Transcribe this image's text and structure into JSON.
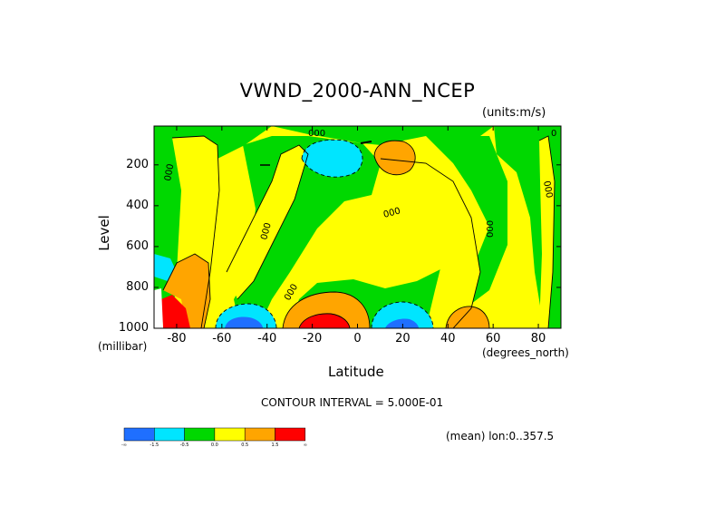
{
  "chart_data": {
    "type": "heatmap",
    "title": "VWND_2000-ANN_NCEP",
    "units_note": "(units:m/s)",
    "xlabel": "Latitude",
    "xlabel_unit": "(degrees_north)",
    "ylabel": "Level",
    "ylabel_unit": "(millibar)",
    "xlim": [
      -90,
      90
    ],
    "ylim": [
      1000,
      10
    ],
    "x_ticks": [
      -80,
      -60,
      -40,
      -20,
      0,
      20,
      40,
      60,
      80
    ],
    "x_tick_labels": [
      "-80",
      "-60",
      "-40",
      "-20",
      "0",
      "20",
      "40",
      "60",
      "80"
    ],
    "y_ticks": [
      200,
      400,
      600,
      800,
      1000
    ],
    "y_tick_labels": [
      "200",
      "400",
      "600",
      "800",
      "1000"
    ],
    "contour_interval_text": "CONTOUR INTERVAL = 5.000E-01",
    "footer_text": "(mean) lon:0..357.5",
    "contour_labels": [
      "0.0",
      "0.0",
      "0.0",
      "0.0",
      "0.0",
      "0.0",
      "0.0",
      "0.0"
    ],
    "colorbar": {
      "bins": [
        "-inf to -1.5",
        "-1.5 to -0.5",
        "-0.5 to 0.0",
        "0.0 to 0.5",
        "0.5 to 1.5",
        "1.5 to inf"
      ],
      "colors": [
        "#1f6fff",
        "#00e5ff",
        "#00d800",
        "#ffff00",
        "#ffa500",
        "#ff0000"
      ],
      "labels": [
        "-∞",
        "-1.5",
        "-0.5",
        "0.0",
        "0.5",
        "1.5",
        "∞"
      ]
    },
    "regions": [
      {
        "label": "positive",
        "lat": -17,
        "level": 950,
        "value": 2.0
      },
      {
        "label": "positive",
        "lat": 15,
        "level": 170,
        "value": 1.0
      },
      {
        "label": "positive",
        "lat": 51,
        "level": 960,
        "value": 0.8
      },
      {
        "label": "positive",
        "lat": -85,
        "level": 960,
        "value": 2.5
      },
      {
        "label": "positive",
        "lat": -71,
        "level": 800,
        "value": 1.0
      },
      {
        "label": "negative",
        "lat": -54,
        "level": 960,
        "value": -1.5
      },
      {
        "label": "negative",
        "lat": 17,
        "level": 960,
        "value": -1.2
      },
      {
        "label": "negative",
        "lat": -8,
        "level": 180,
        "value": -1.0
      },
      {
        "label": "negative",
        "lat": -88,
        "level": 680,
        "value": -0.8
      }
    ]
  }
}
